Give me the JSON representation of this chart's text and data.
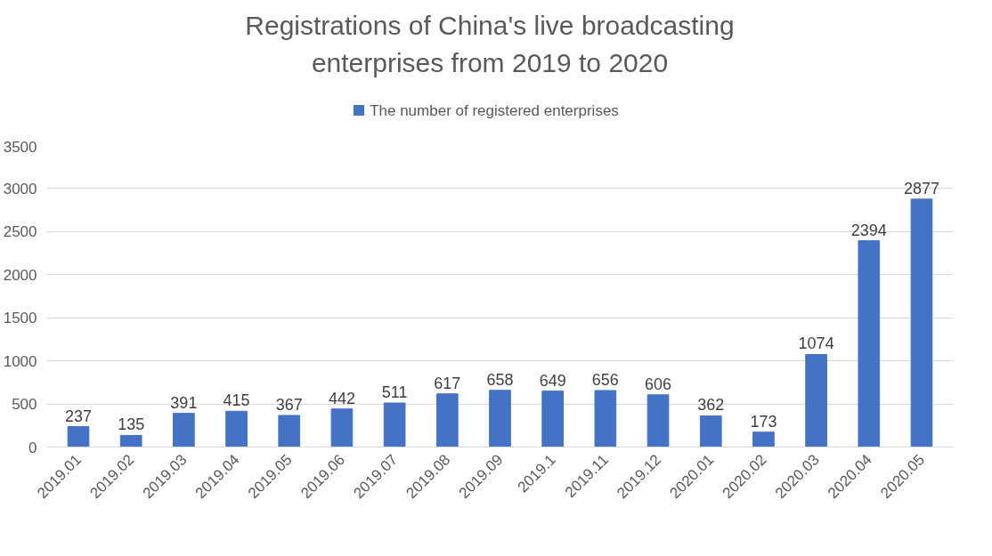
{
  "chart_data": {
    "type": "bar",
    "title": "Registrations of China's live broadcasting enterprises from 2019 to 2020",
    "categories": [
      "2019.01",
      "2019.02",
      "2019.03",
      "2019.04",
      "2019.05",
      "2019.06",
      "2019.07",
      "2019.08",
      "2019.09",
      "2019.1",
      "2019.11",
      "2019.12",
      "2020.01",
      "2020.02",
      "2020.03",
      "2020.04",
      "2020.05"
    ],
    "series": [
      {
        "name": "The number of registered enterprises",
        "color": "#4472c4",
        "values": [
          237,
          135,
          391,
          415,
          367,
          442,
          511,
          617,
          658,
          649,
          656,
          606,
          362,
          173,
          1074,
          2394,
          2877
        ]
      }
    ],
    "ylim": [
      0,
      3500
    ],
    "yticks": [
      0,
      500,
      1000,
      1500,
      2000,
      2500,
      3000,
      3500
    ],
    "grid": "y",
    "legend": "top",
    "data_labels": true
  }
}
